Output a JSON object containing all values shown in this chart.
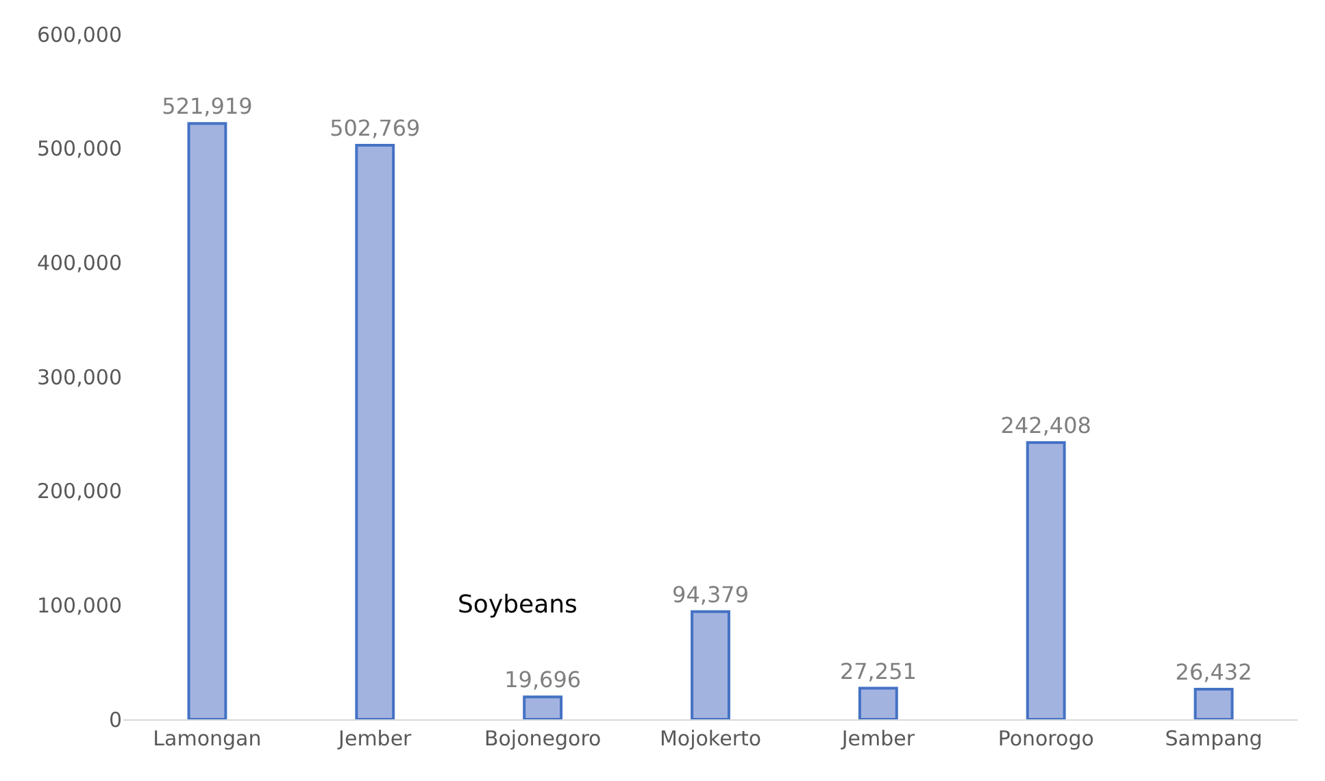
{
  "chart_data": {
    "type": "bar",
    "categories": [
      "Lamongan",
      "Jember",
      "Bojonegoro",
      "Mojokerto",
      "Jember",
      "Ponorogo",
      "Sampang"
    ],
    "values": [
      521919,
      502769,
      19696,
      94379,
      27251,
      242408,
      26432
    ],
    "color": "#a3b3e0",
    "ylim": [
      0,
      600000
    ],
    "yticks": [
      {
        "value": 0,
        "label": "0"
      },
      {
        "value": 100000,
        "label": "100,000"
      },
      {
        "value": 200000,
        "label": "200,000"
      },
      {
        "value": 300000,
        "label": "300,000"
      },
      {
        "value": 400000,
        "label": "400,000"
      },
      {
        "value": 500000,
        "label": "500,000"
      },
      {
        "value": 600000,
        "label": "600,000"
      }
    ],
    "value_labels": [
      "521,919",
      "502,769",
      "19,696",
      "94,379",
      "27,251",
      "242,408",
      "26,432"
    ],
    "annotations": [
      "Soybeans"
    ]
  }
}
